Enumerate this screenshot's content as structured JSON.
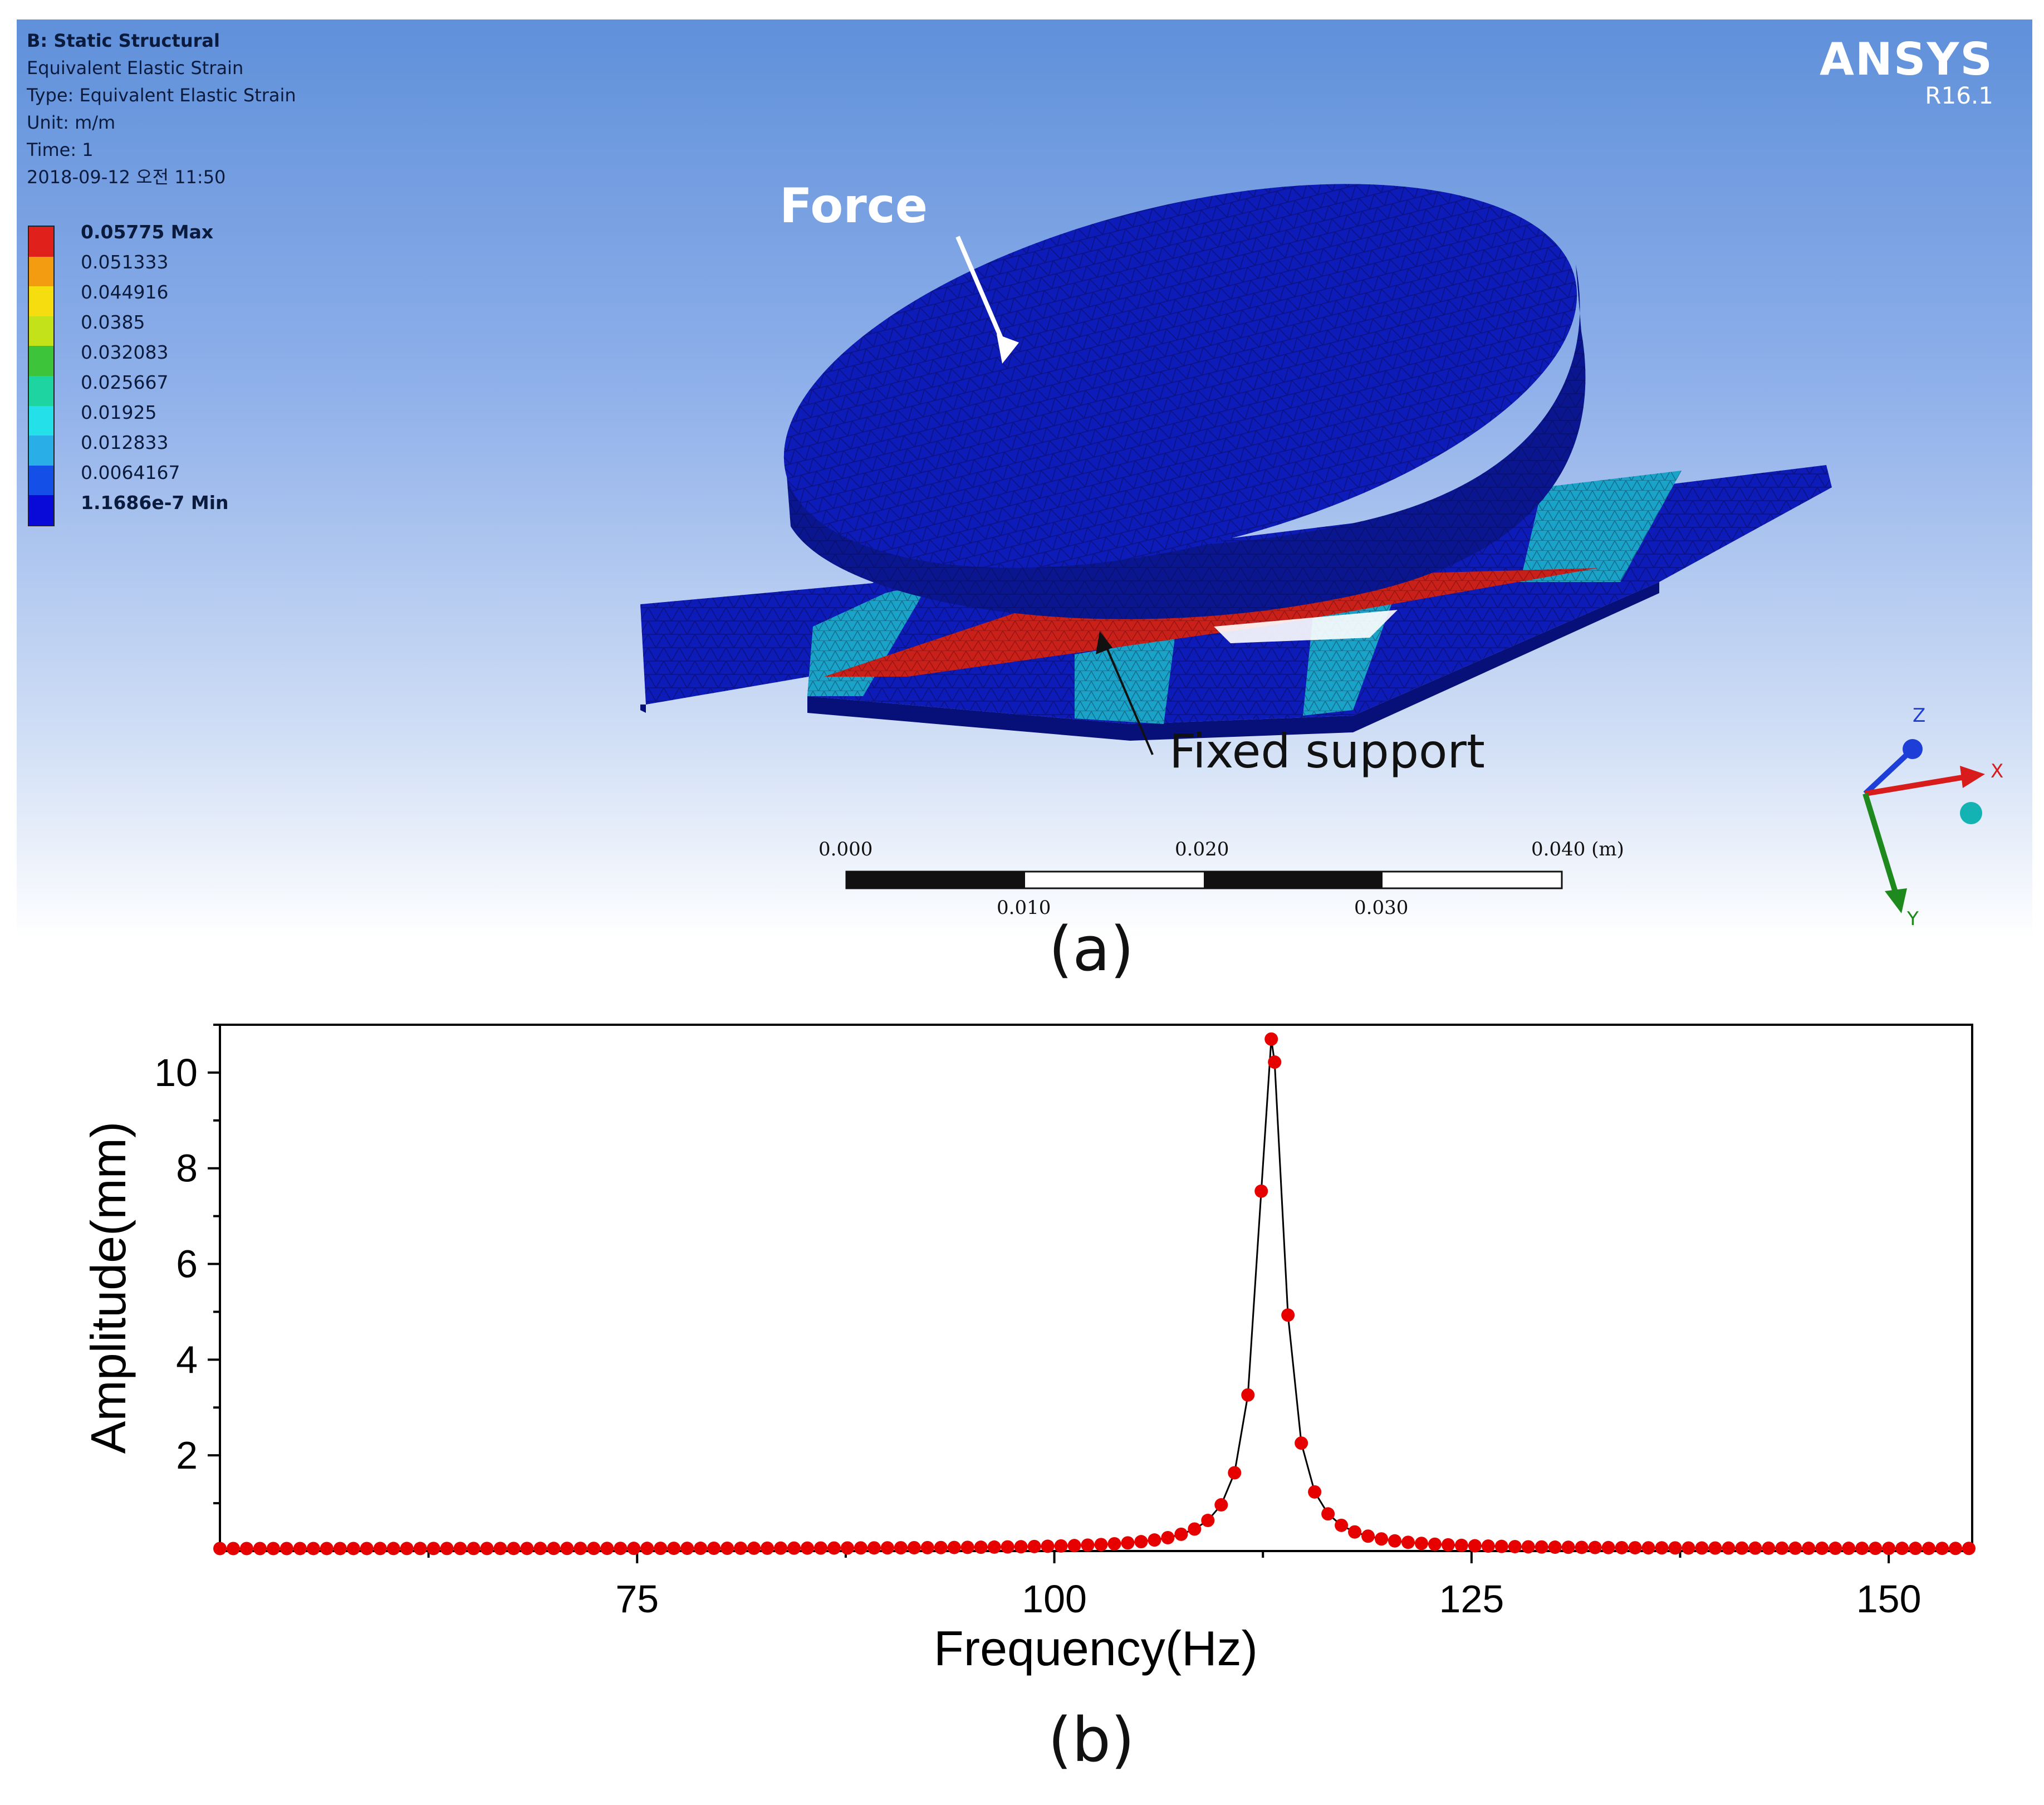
{
  "panel_a": {
    "caption": "(a)",
    "info": {
      "title": "B: Static Structural",
      "line1": "Equivalent Elastic Strain",
      "line2": "Type: Equivalent Elastic Strain",
      "line3": "Unit: m/m",
      "line4": "Time: 1",
      "line5": "2018-09-12 오전 11:50"
    },
    "legend": {
      "labels": [
        "0.05775 Max",
        "0.051333",
        "0.044916",
        "0.0385",
        "0.032083",
        "0.025667",
        "0.01925",
        "0.012833",
        "0.0064167",
        "1.1686e-7 Min"
      ],
      "colors": [
        "#e0201a",
        "#f39c12",
        "#f5dd10",
        "#c4e21a",
        "#3ec43a",
        "#1ed4a0",
        "#24e0e8",
        "#2aaee8",
        "#1450e8",
        "#0a0ad8"
      ]
    },
    "logo": {
      "brand": "ANSYS",
      "version": "R16.1"
    },
    "annotations": {
      "force": "Force",
      "fixed": "Fixed support"
    },
    "scale_bar": {
      "top_labels": [
        "0.000",
        "0.020",
        "0.040 (m)"
      ],
      "bottom_labels": [
        "0.010",
        "0.030"
      ]
    },
    "axes_triad": {
      "z": "Z",
      "x": "X",
      "y": "Y",
      "colors": {
        "z": "#1d3fd8",
        "x": "#d81b1b",
        "y": "#1e8a1e",
        "origin": "#13b3b3"
      }
    }
  },
  "panel_b": {
    "caption": "(b)"
  },
  "chart_data": {
    "type": "scatter",
    "xlabel": "Frequency(Hz)",
    "ylabel": "Amplitude(mm)",
    "xlim": [
      50,
      155
    ],
    "ylim": [
      0,
      11
    ],
    "xticks": [
      75,
      100,
      125,
      150
    ],
    "yticks": [
      2,
      4,
      6,
      8,
      10
    ],
    "f0": 113,
    "peak": 10.7,
    "bandwidth": 0.92,
    "x_start": 50,
    "x_end": 155,
    "x_step": 0.8,
    "marker_color": "#e60000",
    "line_color": "#000000"
  }
}
